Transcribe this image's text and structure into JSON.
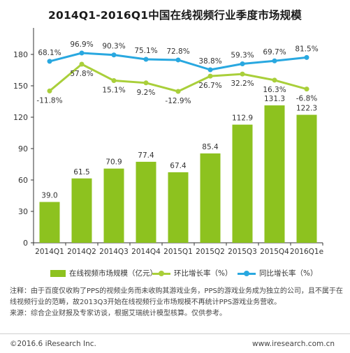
{
  "chart_data": {
    "type": "bar",
    "title": "2014Q1-2016Q1中国在线视频行业季度市场规模",
    "categories": [
      "2014Q1",
      "2014Q2",
      "2014Q3",
      "2014Q4",
      "2015Q1",
      "2015Q2",
      "2015Q3",
      "2015Q4",
      "2016Q1e"
    ],
    "ylim": [
      0,
      200
    ],
    "yticks": [
      0,
      30,
      60,
      90,
      120,
      150,
      180
    ],
    "grid": false,
    "legend_position": "bottom",
    "series": [
      {
        "name": "在线视频市场规模（亿元）",
        "type": "bar",
        "color": "#8dc21f",
        "values": [
          39.0,
          61.5,
          70.9,
          77.4,
          67.4,
          85.4,
          112.9,
          131.3,
          122.3
        ],
        "labels": [
          "39.0",
          "61.5",
          "70.9",
          "77.4",
          "67.4",
          "85.4",
          "112.9",
          "131.3",
          "122.3"
        ]
      },
      {
        "name": "环比增长率（%）",
        "type": "line",
        "color": "#a9cf3a",
        "values": [
          -11.8,
          57.8,
          15.1,
          9.2,
          -12.9,
          26.7,
          32.2,
          16.3,
          -6.8
        ],
        "labels": [
          "-11.8%",
          "57.8%",
          "15.1%",
          "9.2%",
          "-12.9%",
          "26.7%",
          "32.2%",
          "16.3%",
          "-6.8%"
        ]
      },
      {
        "name": "同比增长率（%）",
        "type": "line",
        "color": "#29a8e0",
        "values": [
          68.1,
          96.9,
          90.3,
          75.1,
          72.8,
          38.8,
          59.3,
          69.7,
          81.5
        ],
        "labels": [
          "68.1%",
          "96.9%",
          "90.3%",
          "75.1%",
          "72.8%",
          "38.8%",
          "59.3%",
          "69.7%",
          "81.5%"
        ]
      }
    ]
  },
  "legend": {
    "bar": "在线视频市场规模（亿元）",
    "mom": "环比增长率（%）",
    "yoy": "同比增长率（%）"
  },
  "notes": {
    "line1": "注释：由于百度仅收购了PPS的视频业务而未收购其游戏业务，PPS的游戏业务成为独立的公司，且不属于在线视频行业的范畴，故2013Q3开始在线视频行业市场规模不再统计PPS游戏业务营收。",
    "line2": "来源：综合企业财报及专家访谈，根据艾瑞统计模型核算。仅供参考。"
  },
  "footer": {
    "copyright": "©2016.6 iResearch Inc.",
    "website": "www.iresearch.com.cn"
  },
  "colors": {
    "bar": "#8dc21f",
    "mom_line": "#a9cf3a",
    "yoy_line": "#29a8e0"
  }
}
